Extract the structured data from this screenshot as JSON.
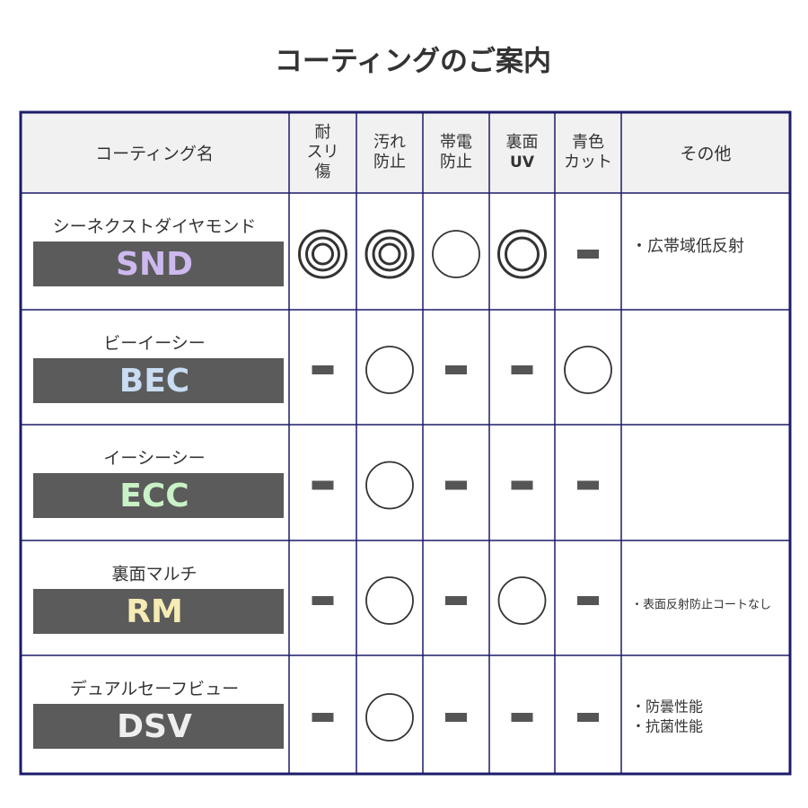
{
  "title": "コーティングのご案内",
  "table": {
    "header": {
      "name": "コーティング名",
      "columns": [
        [
          "耐",
          "スリ",
          "傷"
        ],
        [
          "汚れ",
          "防止"
        ],
        [
          "帯電",
          "防止"
        ],
        [
          "裏面",
          "UV"
        ],
        [
          "青色",
          "カット"
        ]
      ],
      "notes": "その他"
    },
    "rows": [
      {
        "name": "シーネクストダイヤモンド",
        "code": "SND",
        "color": "#cdb9ef",
        "rings": [
          3,
          3,
          1,
          2,
          0
        ],
        "notes": [
          "・広帯域低反射"
        ]
      },
      {
        "name": "ビーイーシー",
        "code": "BEC",
        "color": "#c8dcf2",
        "rings": [
          0,
          1,
          0,
          0,
          1
        ],
        "notes": []
      },
      {
        "name": "イーシーシー",
        "code": "ECC",
        "color": "#c9f2c6",
        "rings": [
          0,
          1,
          0,
          0,
          0
        ],
        "notes": []
      },
      {
        "name": "裏面マルチ",
        "code": "RM",
        "color": "#f6ebb4",
        "rings": [
          0,
          1,
          0,
          1,
          0
        ],
        "notes": [
          "・表面反射防止コートなし"
        ]
      },
      {
        "name": "デュアルセーフビュー",
        "code": "DSV",
        "color": "#eeeeee",
        "rings": [
          0,
          1,
          0,
          0,
          0
        ],
        "notes": [
          "・防曇性能",
          "・抗菌性能"
        ]
      }
    ]
  }
}
